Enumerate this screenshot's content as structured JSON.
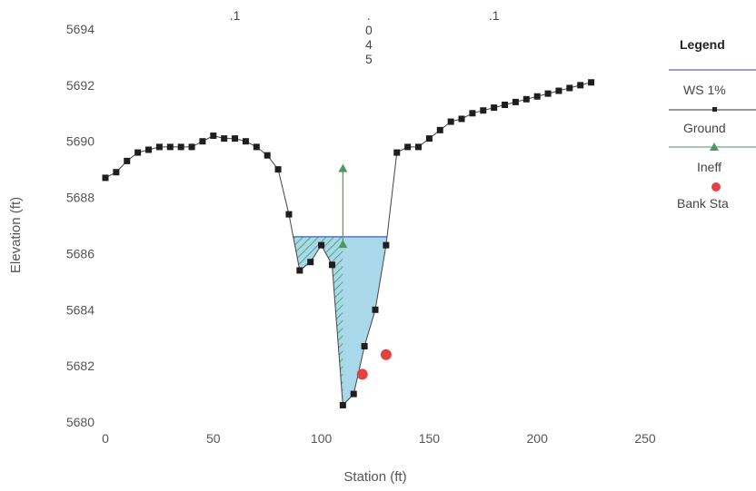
{
  "chart_data": {
    "type": "line",
    "xlabel": "Station (ft)",
    "ylabel": "Elevation (ft)",
    "xlim": [
      0,
      250
    ],
    "ylim": [
      5680,
      5694
    ],
    "x_ticks": [
      "0",
      "50",
      "100",
      "150",
      "200",
      "250"
    ],
    "y_ticks": [
      "5680",
      "5682",
      "5684",
      "5686",
      "5688",
      "5690",
      "5692",
      "5694"
    ],
    "top_labels": [
      {
        "x": 60,
        "lines": [
          ".1"
        ]
      },
      {
        "x": 122,
        "lines": [
          ".",
          "0",
          "4",
          "5"
        ]
      },
      {
        "x": 180,
        "lines": [
          ".1"
        ]
      }
    ],
    "water_surface": {
      "name": "WS 1%",
      "elevation": 5686.6,
      "x_start": 97,
      "x_end": 139
    },
    "ineffective": {
      "name": "Ineff",
      "x": 110,
      "y_top": 5689.0,
      "y_bottom": 5686.3,
      "hatch_x_start": 97
    },
    "series": [
      {
        "name": "Ground",
        "color": "#222222",
        "x": [
          0,
          5,
          10,
          15,
          20,
          25,
          30,
          35,
          40,
          45,
          50,
          55,
          60,
          65,
          70,
          75,
          80,
          85,
          90,
          95,
          100,
          105,
          110,
          115,
          120,
          125,
          130,
          135,
          140,
          145,
          150,
          155,
          160,
          165,
          170,
          175,
          180,
          185,
          190,
          195,
          200,
          205,
          210,
          215,
          220,
          225
        ],
        "y": [
          5688.7,
          5688.9,
          5689.3,
          5689.6,
          5689.7,
          5689.8,
          5689.8,
          5689.8,
          5689.8,
          5690.0,
          5690.2,
          5690.1,
          5690.1,
          5690.0,
          5689.8,
          5689.5,
          5689.0,
          5687.4,
          5685.4,
          5685.7,
          5686.3,
          5685.6,
          5680.6,
          5681.0,
          5682.7,
          5684.0,
          5686.3,
          5689.6,
          5689.8,
          5689.8,
          5690.1,
          5690.4,
          5690.7,
          5690.8,
          5691.0,
          5691.1,
          5691.2,
          5691.3,
          5691.4,
          5691.5,
          5691.6,
          5691.7,
          5691.8,
          5691.9,
          5692.0,
          5692.1
        ]
      }
    ],
    "bank_stations": {
      "name": "Bank Sta",
      "color": "#e64040",
      "points": [
        [
          119,
          5681.7
        ],
        [
          130,
          5682.4
        ]
      ]
    },
    "legend": {
      "title": "Legend",
      "placement": "right",
      "items": [
        {
          "label": "WS 1%",
          "color": "#7b7fc4",
          "marker": "none"
        },
        {
          "label": "Ground",
          "color": "#333333",
          "marker": "square"
        },
        {
          "label": "Ineff",
          "color": "#4a9a5a",
          "marker": "triangle"
        },
        {
          "label": "Bank Sta",
          "color": "#e64040",
          "marker": "circle"
        }
      ]
    }
  }
}
